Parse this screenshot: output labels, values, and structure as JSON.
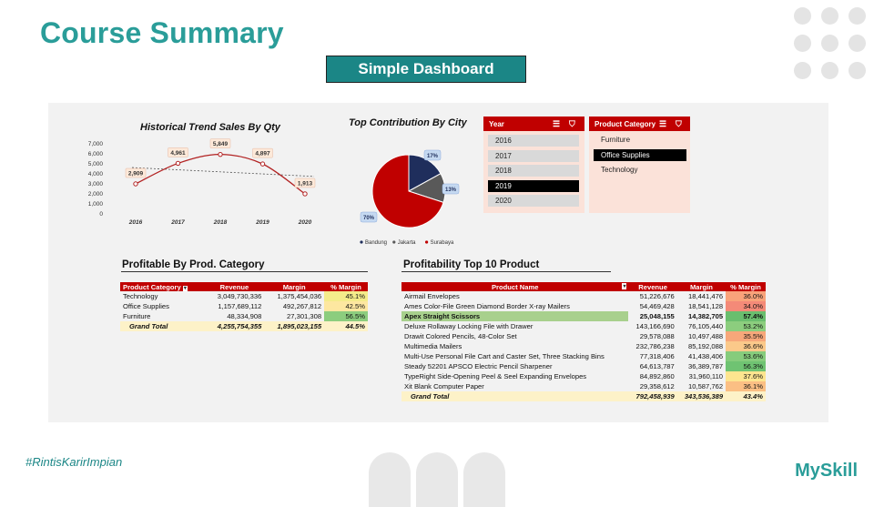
{
  "page": {
    "title": "Course Summary",
    "badge": "Simple Dashboard",
    "tagline": "#RintisKarirImpian",
    "brand": "MySkill"
  },
  "trend_chart": {
    "title": "Historical Trend Sales By Qty",
    "chart_data": {
      "type": "line",
      "x": [
        "2016",
        "2017",
        "2018",
        "2019",
        "2020"
      ],
      "values": [
        2909,
        4961,
        5849,
        4897,
        1913
      ],
      "labels": [
        "2,909",
        "4,961",
        "5,849",
        "4,897",
        "1,913"
      ],
      "yticks": [
        "7,000",
        "6,000",
        "5,000",
        "4,000",
        "3,000",
        "2,000",
        "1,000",
        "0"
      ],
      "ylim": [
        0,
        7000
      ],
      "trendline": true
    }
  },
  "city_chart": {
    "title": "Top Contribution By City",
    "chart_data": {
      "type": "pie",
      "categories": [
        "Bandung",
        "Jakarta",
        "Surabaya"
      ],
      "values": [
        17,
        13,
        70
      ],
      "labels": [
        "17%",
        "13%",
        "70%"
      ],
      "colors": [
        "#1f2e5c",
        "#595959",
        "#c00000"
      ]
    }
  },
  "year_slicer": {
    "header": "Year",
    "items": [
      "2016",
      "2017",
      "2018",
      "2019",
      "2020"
    ],
    "selected_index": 3
  },
  "category_slicer": {
    "header": "Product Category",
    "items": [
      "Furniture",
      "Office Supplies",
      "Technology"
    ],
    "selected_index": 1
  },
  "category_table": {
    "title": "Profitable By Prod. Category",
    "headers": [
      "Product Category",
      "Revenue",
      "Margin",
      "% Margin"
    ],
    "rows": [
      [
        "Technology",
        "3,049,730,336",
        "1,375,454,036",
        "45.1%"
      ],
      [
        "Office Supplies",
        "1,157,689,112",
        "492,267,812",
        "42.5%"
      ],
      [
        "Furniture",
        "48,334,908",
        "27,301,308",
        "56.5%"
      ]
    ],
    "row_colors": [
      "#f4ec8a",
      "#fde7a0",
      "#8ccd7e"
    ],
    "total": [
      "Grand Total",
      "4,255,754,355",
      "1,895,023,155",
      "44.5%"
    ]
  },
  "product_table": {
    "title": "Profitability Top 10 Product",
    "headers": [
      "Product Name",
      "Revenue",
      "Margin",
      "% Margin"
    ],
    "rows": [
      [
        "Airmail Envelopes",
        "51,226,676",
        "18,441,476",
        "36.0%"
      ],
      [
        "Ames Color-File Green Diamond Border X-ray Mailers",
        "54,469,428",
        "18,541,128",
        "34.0%"
      ],
      [
        "Apex Straight Scissors",
        "25,048,155",
        "14,382,705",
        "57.4%"
      ],
      [
        "Deluxe Rollaway Locking File with Drawer",
        "143,166,690",
        "76,105,440",
        "53.2%"
      ],
      [
        "Drawit Colored Pencils, 48-Color Set",
        "29,578,088",
        "10,497,488",
        "35.5%"
      ],
      [
        "Multimedia Mailers",
        "232,786,238",
        "85,192,088",
        "36.6%"
      ],
      [
        "Multi-Use Personal File Cart and Caster Set, Three Stacking Bins",
        "77,318,406",
        "41,438,406",
        "53.6%"
      ],
      [
        "Steady 52201 APSCO Electric Pencil Sharpener",
        "64,613,787",
        "36,389,787",
        "56.3%"
      ],
      [
        "TypeRight Side-Opening Peel & Seel Expanding Envelopes",
        "84,892,860",
        "31,960,110",
        "37.6%"
      ],
      [
        "Xit Blank Computer Paper",
        "29,358,612",
        "10,587,762",
        "36.1%"
      ]
    ],
    "highlight_row": 2,
    "pct_colors": [
      "#f9a37a",
      "#f48a78",
      "#6abe6e",
      "#8ccd7e",
      "#f7a77a",
      "#fbc98a",
      "#86cc7c",
      "#6fc372",
      "#fde58f",
      "#fbbf84"
    ],
    "total": [
      "Grand Total",
      "792,458,939",
      "343,536,389",
      "43.4%"
    ]
  }
}
